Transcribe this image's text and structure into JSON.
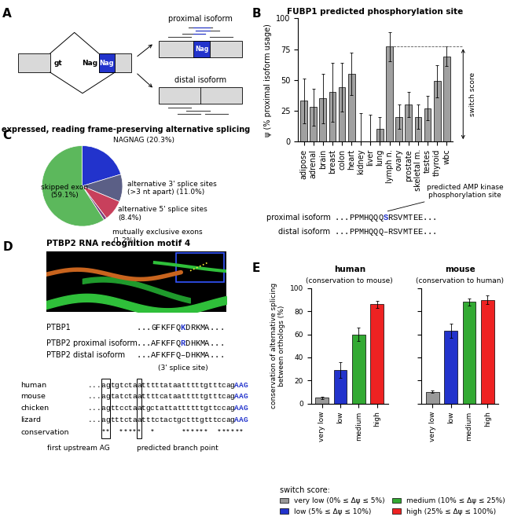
{
  "panel_labels": [
    "A",
    "B",
    "C",
    "D",
    "E"
  ],
  "panel_A": {
    "donor": "gt",
    "intron_acceptor": "Nag",
    "exon_acceptor": "Nag",
    "proximal_label": "proximal isoform",
    "proximal_segment": "Nag",
    "distal_label": "distal isoform"
  },
  "chart_data": [
    {
      "type": "bar",
      "title": "FUBP1 predicted phosphorylation site",
      "ylabel": "ψ (% proximal isoform usage)",
      "categories": [
        "adipose",
        "adrenal",
        "brain",
        "breast",
        "colon",
        "heart",
        "kidney",
        "liver",
        "lung",
        "lymph n.",
        "ovary",
        "prostate",
        "skeletal m.",
        "testes",
        "thyroid",
        "wbc"
      ],
      "values": [
        33,
        28,
        35,
        40,
        44,
        55,
        0,
        0,
        10,
        77,
        20,
        30,
        20,
        27,
        49,
        69
      ],
      "errors": [
        18,
        15,
        20,
        24,
        20,
        17,
        23,
        22,
        10,
        12,
        10,
        10,
        10,
        10,
        13,
        8
      ],
      "color": "#a0a0a0",
      "ylim": [
        0,
        100
      ],
      "yticks": [
        0,
        25,
        50,
        75,
        100
      ],
      "annotations": [
        "switch score",
        "predicted AMP kinase\nphosphorylation site"
      ]
    },
    {
      "type": "pie",
      "title": "expressed, reading frame-preserving alternative splicing",
      "categories": [
        "NAGNAG (20.3%)",
        "alternative 3' splice sites\n(>3 nt apart) (11.0%)",
        "alternative 5' splice sites\n(8.4%)",
        "mutually exclusive exons\n(1.2%)",
        "skipped exon\n(59.1%)"
      ],
      "values": [
        20.3,
        11.0,
        8.4,
        1.2,
        59.1
      ],
      "colors": [
        "#2233cc",
        "#5b5f86",
        "#c8405c",
        "#7b3d7b",
        "#5cb85c"
      ]
    },
    {
      "type": "bar",
      "title": "human",
      "subtitle": "(conservation to mouse)",
      "ylabel": "conservation of alternative splicing\nbetween orthologs (%)",
      "categories": [
        "very low",
        "low",
        "medium",
        "high"
      ],
      "values": [
        5,
        29,
        60,
        86
      ],
      "errors": [
        1,
        7,
        6,
        3
      ],
      "colors": [
        "#999999",
        "#2233cc",
        "#33aa33",
        "#ee2222"
      ],
      "ylim": [
        0,
        100
      ],
      "yticks": [
        0,
        20,
        40,
        60,
        80,
        100
      ]
    },
    {
      "type": "bar",
      "title": "mouse",
      "subtitle": "(conservation to human)",
      "categories": [
        "very low",
        "low",
        "medium",
        "high"
      ],
      "values": [
        10,
        63,
        88,
        90
      ],
      "errors": [
        1,
        6,
        3,
        4
      ],
      "colors": [
        "#999999",
        "#2233cc",
        "#33aa33",
        "#ee2222"
      ],
      "ylim": [
        0,
        100
      ],
      "yticks": [
        0,
        20,
        40,
        60,
        80,
        100
      ],
      "tick_labels": "x"
    }
  ],
  "panel_B_sequences": [
    {
      "name": "proximal isoform",
      "segments": [
        {
          "text": "...PPMHQQQ",
          "color": "#000000"
        },
        {
          "text": "S",
          "color": "#2233cc"
        },
        {
          "text": "RSVMTEE...",
          "color": "#000000"
        }
      ]
    },
    {
      "name": "distal isoform",
      "segments": [
        {
          "text": "...PPMHQQQ",
          "color": "#000000"
        },
        {
          "text": "–",
          "color": "#000000"
        },
        {
          "text": "RSVMTEE...",
          "color": "#000000"
        }
      ]
    }
  ],
  "panel_D": {
    "title": "PTBP2 RNA recognition motif 4",
    "protein_rows": [
      {
        "name": "PTBP1",
        "segments": [
          {
            "text": "...GFKFFQ",
            "color": "#000000"
          },
          {
            "text": "K",
            "color": "#2233cc"
          },
          {
            "text": "DRKMA...",
            "color": "#000000"
          }
        ]
      },
      {
        "name": "PTBP2 proximal isoform",
        "segments": [
          {
            "text": "...AFKFFQ",
            "color": "#000000"
          },
          {
            "text": "R",
            "color": "#2233cc"
          },
          {
            "text": "DHKMA...",
            "color": "#000000"
          }
        ]
      },
      {
        "name": "PTBP2 distal isoform",
        "segments": [
          {
            "text": "...AFKFFQ",
            "color": "#000000"
          },
          {
            "text": "–",
            "color": "#000000"
          },
          {
            "text": "DHKMA...",
            "color": "#000000"
          }
        ]
      }
    ],
    "splice_site_label": "(3' splice site)",
    "alignment": [
      {
        "species": "human",
        "segments": [
          {
            "text": "...agtgtctaatttttataatttttgtttcag",
            "color": "#000000"
          },
          {
            "text": "AAG",
            "color": "#2233cc"
          }
        ]
      },
      {
        "species": "mouse",
        "segments": [
          {
            "text": "...agtatctaattttcataatttttgtttcag",
            "color": "#000000"
          },
          {
            "text": "AAG",
            "color": "#2233cc"
          }
        ]
      },
      {
        "species": "chicken",
        "segments": [
          {
            "text": "...agttcctaatgctattattttttgttccag",
            "color": "#000000"
          },
          {
            "text": "AAG",
            "color": "#2233cc"
          }
        ]
      },
      {
        "species": "lizard",
        "segments": [
          {
            "text": "...agtttctaatttctactgctttgtttccag",
            "color": "#000000"
          },
          {
            "text": "AAG",
            "color": "#2233cc"
          }
        ]
      }
    ],
    "conservation": {
      "label": "conservation",
      "stars": "   **  *****  *      ******  ******"
    },
    "box_labels": [
      "first upstream AG",
      "predicted branch point"
    ]
  },
  "panel_E_legend": {
    "title": "switch score:",
    "entries": [
      "very low (0% ≤ Δψ ≤ 5%)",
      "low (5% ≤ Δψ ≤ 10%)",
      "medium (10% ≤ Δψ ≤ 25%)",
      "high (25% ≤ Δψ ≤ 100%)"
    ]
  }
}
